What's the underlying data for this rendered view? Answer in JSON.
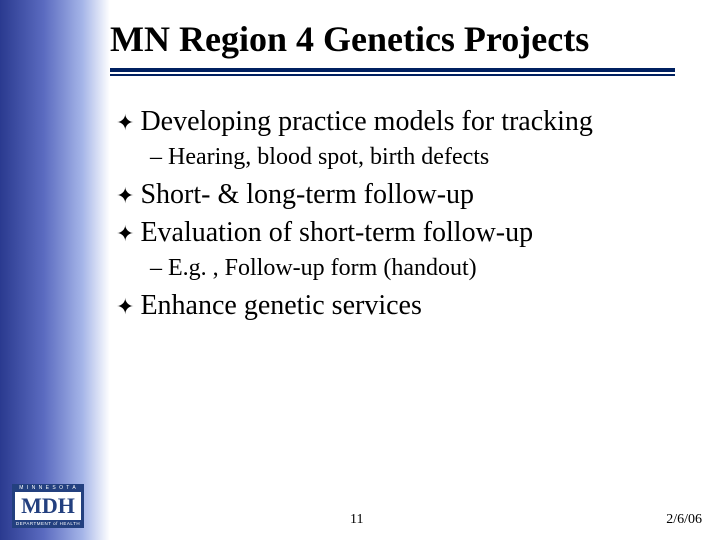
{
  "slide": {
    "title": "MN Region 4 Genetics Projects",
    "title_color": "#000000",
    "title_fontsize": 36,
    "underline_color": "#002060",
    "gradient_start": "#2a3a8f",
    "gradient_end": "#ffffff",
    "background_color": "#ffffff"
  },
  "bullets": [
    {
      "level": 1,
      "text": "Developing practice models for tracking"
    },
    {
      "level": 2,
      "text": "Hearing, blood spot, birth defects"
    },
    {
      "level": 1,
      "text": "Short- & long-term follow-up"
    },
    {
      "level": 1,
      "text": "Evaluation of short-term follow-up"
    },
    {
      "level": 2,
      "text": "E.g. , Follow-up form (handout)"
    },
    {
      "level": 1,
      "text": "Enhance genetic services"
    }
  ],
  "bullet_style": {
    "level1_marker": "✦",
    "level2_marker": "–",
    "level1_fontsize": 28,
    "level2_fontsize": 24,
    "text_color": "#000000"
  },
  "footer": {
    "slide_number": "11",
    "date": "2/6/06"
  },
  "logo": {
    "top_text": "M I N N E S O T A",
    "mid_text": "MDH",
    "bottom_text": "DEPARTMENT of HEALTH",
    "color": "#23407f"
  }
}
